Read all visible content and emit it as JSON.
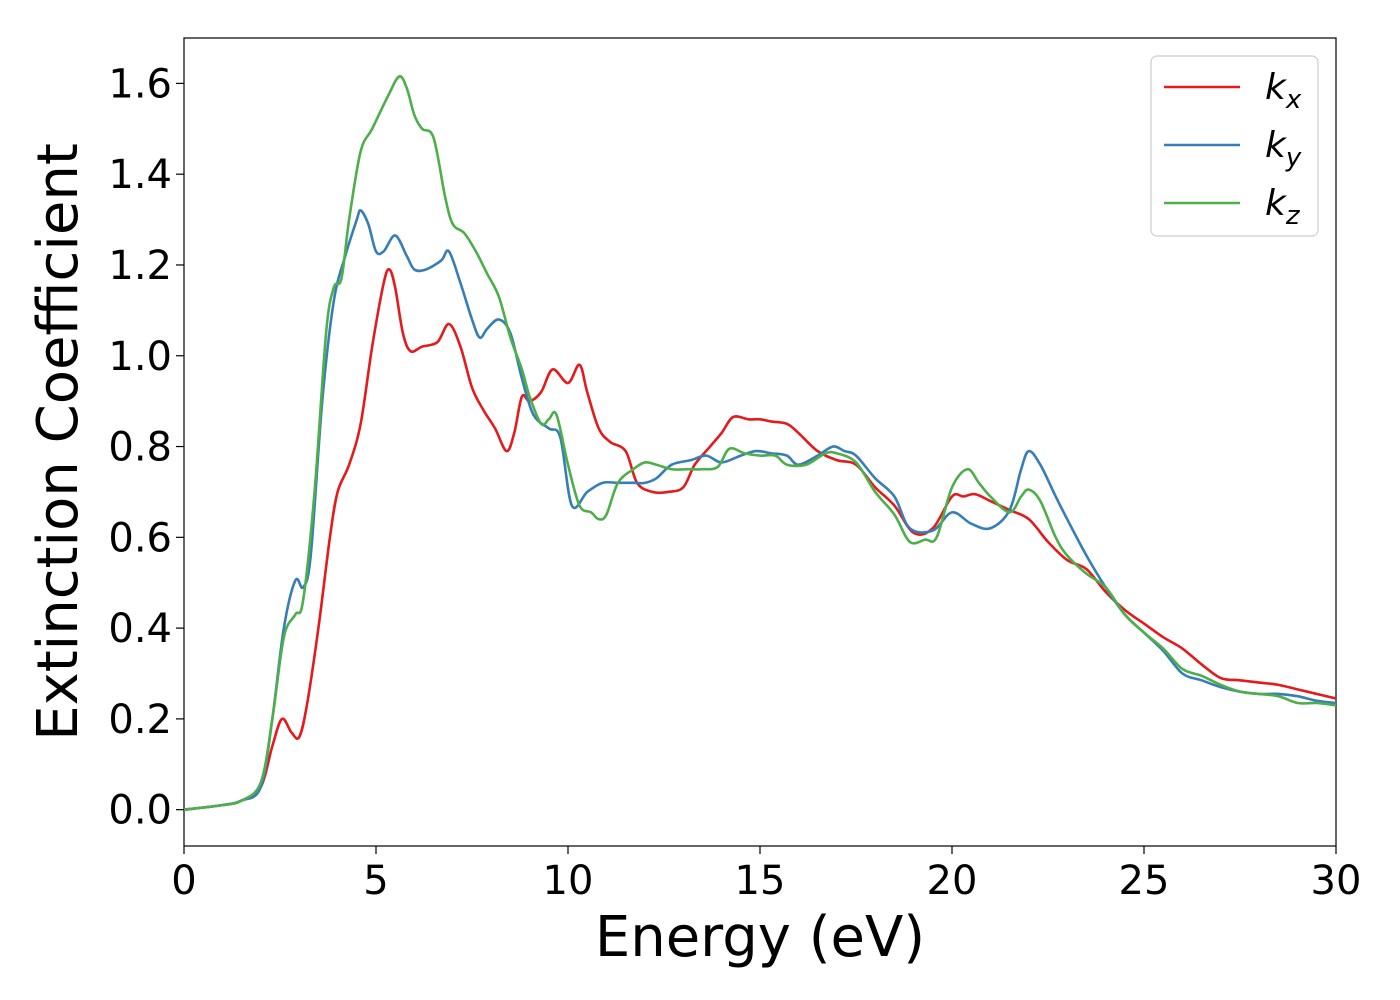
{
  "chart_data": {
    "type": "line",
    "title": "",
    "xlabel": "Energy (eV)",
    "ylabel": "Extinction Coefficient",
    "xlim": [
      0,
      30
    ],
    "ylim": [
      -0.08,
      1.7
    ],
    "x_ticks": [
      0,
      5,
      10,
      15,
      20,
      25,
      30
    ],
    "x_tick_labels": [
      "0",
      "5",
      "10",
      "15",
      "20",
      "25",
      "30"
    ],
    "y_ticks": [
      0.0,
      0.2,
      0.4,
      0.6,
      0.8,
      1.0,
      1.2,
      1.4,
      1.6
    ],
    "y_tick_labels": [
      "0.0",
      "0.2",
      "0.4",
      "0.6",
      "0.8",
      "1.0",
      "1.2",
      "1.4",
      "1.6"
    ],
    "grid": false,
    "legend_position": "top-right",
    "series": [
      {
        "name": "k",
        "subscript": "x",
        "color": "#e41a1c",
        "points": [
          [
            0,
            0.0
          ],
          [
            1,
            0.01
          ],
          [
            1.5,
            0.02
          ],
          [
            2,
            0.05
          ],
          [
            2.3,
            0.14
          ],
          [
            2.55,
            0.2
          ],
          [
            2.8,
            0.17
          ],
          [
            3.0,
            0.16
          ],
          [
            3.2,
            0.23
          ],
          [
            3.5,
            0.4
          ],
          [
            3.8,
            0.6
          ],
          [
            4.0,
            0.7
          ],
          [
            4.3,
            0.76
          ],
          [
            4.6,
            0.85
          ],
          [
            4.9,
            1.02
          ],
          [
            5.2,
            1.16
          ],
          [
            5.35,
            1.19
          ],
          [
            5.5,
            1.15
          ],
          [
            5.7,
            1.05
          ],
          [
            5.9,
            1.01
          ],
          [
            6.2,
            1.02
          ],
          [
            6.6,
            1.03
          ],
          [
            6.9,
            1.07
          ],
          [
            7.2,
            1.02
          ],
          [
            7.5,
            0.93
          ],
          [
            7.8,
            0.88
          ],
          [
            8.1,
            0.84
          ],
          [
            8.4,
            0.79
          ],
          [
            8.6,
            0.83
          ],
          [
            8.8,
            0.91
          ],
          [
            9.0,
            0.9
          ],
          [
            9.3,
            0.92
          ],
          [
            9.6,
            0.97
          ],
          [
            10.0,
            0.94
          ],
          [
            10.3,
            0.98
          ],
          [
            10.5,
            0.92
          ],
          [
            10.8,
            0.84
          ],
          [
            11.1,
            0.81
          ],
          [
            11.5,
            0.79
          ],
          [
            11.8,
            0.72
          ],
          [
            12.2,
            0.7
          ],
          [
            12.6,
            0.7
          ],
          [
            13.0,
            0.71
          ],
          [
            13.3,
            0.76
          ],
          [
            13.7,
            0.8
          ],
          [
            14.0,
            0.83
          ],
          [
            14.3,
            0.865
          ],
          [
            14.7,
            0.86
          ],
          [
            15.0,
            0.86
          ],
          [
            15.3,
            0.855
          ],
          [
            15.7,
            0.85
          ],
          [
            16.0,
            0.83
          ],
          [
            16.5,
            0.79
          ],
          [
            17.0,
            0.77
          ],
          [
            17.5,
            0.76
          ],
          [
            18.0,
            0.71
          ],
          [
            18.5,
            0.67
          ],
          [
            19.0,
            0.61
          ],
          [
            19.5,
            0.62
          ],
          [
            20.0,
            0.69
          ],
          [
            20.3,
            0.69
          ],
          [
            20.6,
            0.695
          ],
          [
            21.0,
            0.68
          ],
          [
            21.5,
            0.66
          ],
          [
            22.0,
            0.64
          ],
          [
            22.5,
            0.59
          ],
          [
            23.0,
            0.55
          ],
          [
            23.5,
            0.53
          ],
          [
            24.0,
            0.48
          ],
          [
            24.5,
            0.44
          ],
          [
            25.0,
            0.41
          ],
          [
            25.5,
            0.38
          ],
          [
            26.0,
            0.355
          ],
          [
            26.5,
            0.32
          ],
          [
            27.0,
            0.29
          ],
          [
            27.5,
            0.285
          ],
          [
            28.0,
            0.28
          ],
          [
            28.5,
            0.275
          ],
          [
            29.0,
            0.265
          ],
          [
            29.5,
            0.255
          ],
          [
            30.0,
            0.245
          ]
        ]
      },
      {
        "name": "k",
        "subscript": "y",
        "color": "#377eb8",
        "points": [
          [
            0,
            0.0
          ],
          [
            1,
            0.01
          ],
          [
            1.5,
            0.02
          ],
          [
            2,
            0.05
          ],
          [
            2.3,
            0.2
          ],
          [
            2.6,
            0.4
          ],
          [
            2.9,
            0.505
          ],
          [
            3.1,
            0.49
          ],
          [
            3.3,
            0.56
          ],
          [
            3.6,
            0.9
          ],
          [
            3.9,
            1.12
          ],
          [
            4.2,
            1.22
          ],
          [
            4.5,
            1.3
          ],
          [
            4.6,
            1.32
          ],
          [
            4.8,
            1.29
          ],
          [
            5.0,
            1.23
          ],
          [
            5.2,
            1.23
          ],
          [
            5.5,
            1.265
          ],
          [
            5.8,
            1.22
          ],
          [
            6.0,
            1.19
          ],
          [
            6.3,
            1.19
          ],
          [
            6.7,
            1.21
          ],
          [
            6.9,
            1.23
          ],
          [
            7.2,
            1.16
          ],
          [
            7.5,
            1.08
          ],
          [
            7.7,
            1.04
          ],
          [
            7.9,
            1.06
          ],
          [
            8.2,
            1.08
          ],
          [
            8.5,
            1.05
          ],
          [
            8.8,
            0.95
          ],
          [
            9.1,
            0.87
          ],
          [
            9.5,
            0.84
          ],
          [
            9.8,
            0.82
          ],
          [
            10.1,
            0.67
          ],
          [
            10.5,
            0.7
          ],
          [
            10.9,
            0.72
          ],
          [
            11.3,
            0.72
          ],
          [
            11.7,
            0.72
          ],
          [
            12.0,
            0.72
          ],
          [
            12.3,
            0.73
          ],
          [
            12.7,
            0.76
          ],
          [
            13.2,
            0.77
          ],
          [
            13.6,
            0.78
          ],
          [
            14.0,
            0.765
          ],
          [
            14.5,
            0.78
          ],
          [
            14.9,
            0.79
          ],
          [
            15.3,
            0.785
          ],
          [
            15.7,
            0.78
          ],
          [
            16.0,
            0.76
          ],
          [
            16.5,
            0.78
          ],
          [
            16.9,
            0.8
          ],
          [
            17.2,
            0.79
          ],
          [
            17.5,
            0.78
          ],
          [
            18.0,
            0.73
          ],
          [
            18.5,
            0.69
          ],
          [
            18.9,
            0.62
          ],
          [
            19.5,
            0.615
          ],
          [
            20.0,
            0.655
          ],
          [
            20.5,
            0.63
          ],
          [
            21.0,
            0.62
          ],
          [
            21.5,
            0.66
          ],
          [
            21.8,
            0.75
          ],
          [
            22.0,
            0.79
          ],
          [
            22.3,
            0.76
          ],
          [
            22.7,
            0.69
          ],
          [
            23.0,
            0.64
          ],
          [
            23.5,
            0.56
          ],
          [
            24.0,
            0.49
          ],
          [
            24.5,
            0.43
          ],
          [
            25.0,
            0.39
          ],
          [
            25.5,
            0.35
          ],
          [
            26.0,
            0.3
          ],
          [
            26.5,
            0.285
          ],
          [
            27.0,
            0.27
          ],
          [
            27.5,
            0.26
          ],
          [
            28.0,
            0.255
          ],
          [
            28.5,
            0.255
          ],
          [
            29.0,
            0.25
          ],
          [
            29.5,
            0.24
          ],
          [
            30.0,
            0.235
          ]
        ]
      },
      {
        "name": "k",
        "subscript": "z",
        "color": "#4daf4a",
        "points": [
          [
            0,
            0.0
          ],
          [
            1,
            0.01
          ],
          [
            1.5,
            0.02
          ],
          [
            2,
            0.06
          ],
          [
            2.3,
            0.2
          ],
          [
            2.6,
            0.38
          ],
          [
            2.9,
            0.43
          ],
          [
            3.1,
            0.46
          ],
          [
            3.4,
            0.7
          ],
          [
            3.7,
            1.05
          ],
          [
            3.9,
            1.15
          ],
          [
            4.1,
            1.17
          ],
          [
            4.3,
            1.3
          ],
          [
            4.6,
            1.45
          ],
          [
            4.9,
            1.5
          ],
          [
            5.3,
            1.57
          ],
          [
            5.6,
            1.615
          ],
          [
            5.8,
            1.59
          ],
          [
            6.0,
            1.53
          ],
          [
            6.2,
            1.5
          ],
          [
            6.5,
            1.48
          ],
          [
            6.8,
            1.35
          ],
          [
            7.0,
            1.29
          ],
          [
            7.3,
            1.27
          ],
          [
            7.6,
            1.23
          ],
          [
            7.9,
            1.18
          ],
          [
            8.2,
            1.13
          ],
          [
            8.5,
            1.04
          ],
          [
            8.8,
            0.97
          ],
          [
            9.0,
            0.91
          ],
          [
            9.3,
            0.85
          ],
          [
            9.5,
            0.86
          ],
          [
            9.7,
            0.87
          ],
          [
            10.0,
            0.76
          ],
          [
            10.3,
            0.67
          ],
          [
            10.6,
            0.655
          ],
          [
            10.8,
            0.64
          ],
          [
            11.0,
            0.65
          ],
          [
            11.3,
            0.72
          ],
          [
            11.7,
            0.75
          ],
          [
            12.0,
            0.765
          ],
          [
            12.3,
            0.76
          ],
          [
            12.7,
            0.75
          ],
          [
            13.1,
            0.75
          ],
          [
            13.5,
            0.75
          ],
          [
            13.9,
            0.755
          ],
          [
            14.2,
            0.795
          ],
          [
            14.6,
            0.785
          ],
          [
            15.0,
            0.78
          ],
          [
            15.4,
            0.78
          ],
          [
            15.7,
            0.76
          ],
          [
            16.2,
            0.76
          ],
          [
            16.7,
            0.785
          ],
          [
            17.0,
            0.785
          ],
          [
            17.5,
            0.765
          ],
          [
            18.0,
            0.7
          ],
          [
            18.5,
            0.65
          ],
          [
            18.9,
            0.59
          ],
          [
            19.3,
            0.595
          ],
          [
            19.6,
            0.6
          ],
          [
            20.0,
            0.71
          ],
          [
            20.4,
            0.75
          ],
          [
            20.7,
            0.72
          ],
          [
            21.0,
            0.69
          ],
          [
            21.5,
            0.655
          ],
          [
            21.8,
            0.69
          ],
          [
            22.0,
            0.705
          ],
          [
            22.3,
            0.68
          ],
          [
            22.7,
            0.6
          ],
          [
            23.0,
            0.56
          ],
          [
            23.5,
            0.52
          ],
          [
            24.0,
            0.49
          ],
          [
            24.5,
            0.43
          ],
          [
            25.0,
            0.39
          ],
          [
            25.5,
            0.355
          ],
          [
            26.0,
            0.31
          ],
          [
            26.5,
            0.295
          ],
          [
            27.0,
            0.275
          ],
          [
            27.5,
            0.26
          ],
          [
            28.0,
            0.255
          ],
          [
            28.5,
            0.25
          ],
          [
            29.0,
            0.235
          ],
          [
            29.5,
            0.235
          ],
          [
            30.0,
            0.23
          ]
        ]
      }
    ]
  }
}
